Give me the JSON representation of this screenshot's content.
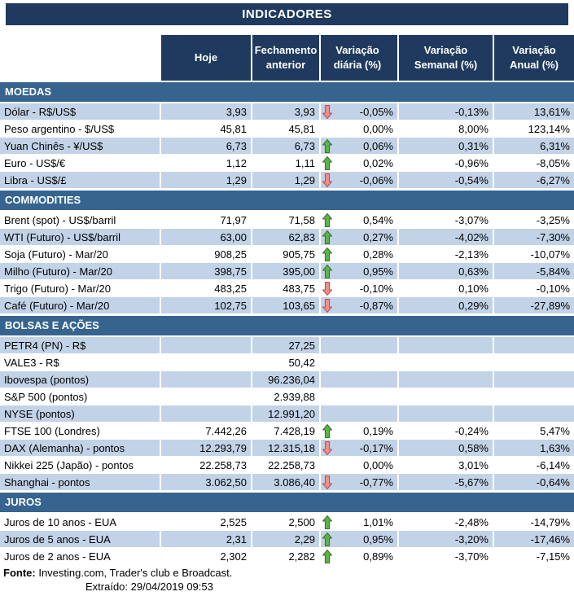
{
  "chart_data": {
    "type": "table",
    "title": "INDICADORES",
    "columns": [
      {
        "label": "Hoje"
      },
      {
        "label": "Fechamento anterior"
      },
      {
        "label": "Variação diária (%)"
      },
      {
        "label": "Variação Semanal (%)"
      },
      {
        "label": "Variação Anual (%)"
      }
    ],
    "sections": [
      {
        "name": "MOEDAS",
        "rows": [
          {
            "label": "Dólar - R$/US$",
            "hoje": "3,93",
            "fechamento": "3,93",
            "arrow": "down",
            "variacao_diaria": "-0,05%",
            "variacao_semanal": "-0,13%",
            "variacao_anual": "13,61%"
          },
          {
            "label": "Peso argentino - $/US$",
            "hoje": "45,81",
            "fechamento": "45,81",
            "arrow": "none",
            "variacao_diaria": "0,00%",
            "variacao_semanal": "8,00%",
            "variacao_anual": "123,14%"
          },
          {
            "label": "Yuan Chinês - ¥/US$",
            "hoje": "6,73",
            "fechamento": "6,73",
            "arrow": "up",
            "variacao_diaria": "0,06%",
            "variacao_semanal": "0,31%",
            "variacao_anual": "6,31%"
          },
          {
            "label": "Euro - US$/€",
            "hoje": "1,12",
            "fechamento": "1,11",
            "arrow": "up",
            "variacao_diaria": "0,02%",
            "variacao_semanal": "-0,96%",
            "variacao_anual": "-8,05%"
          },
          {
            "label": "Libra - US$/£",
            "hoje": "1,29",
            "fechamento": "1,29",
            "arrow": "down",
            "variacao_diaria": "-0,06%",
            "variacao_semanal": "-0,54%",
            "variacao_anual": "-6,27%"
          }
        ]
      },
      {
        "name": "COMMODITIES",
        "rows": [
          {
            "label": "Brent (spot) - US$/barril",
            "hoje": "71,97",
            "fechamento": "71,58",
            "arrow": "up",
            "variacao_diaria": "0,54%",
            "variacao_semanal": "-3,07%",
            "variacao_anual": "-3,25%"
          },
          {
            "label": "WTI (Futuro) - US$/barril",
            "hoje": "63,00",
            "fechamento": "62,83",
            "arrow": "up",
            "variacao_diaria": "0,27%",
            "variacao_semanal": "-4,02%",
            "variacao_anual": "-7,30%"
          },
          {
            "label": "Soja (Futuro) - Mar/20",
            "hoje": "908,25",
            "fechamento": "905,75",
            "arrow": "up",
            "variacao_diaria": "0,28%",
            "variacao_semanal": "-2,13%",
            "variacao_anual": "-10,07%"
          },
          {
            "label": "Milho (Futuro) - Mar/20",
            "hoje": "398,75",
            "fechamento": "395,00",
            "arrow": "up",
            "variacao_diaria": "0,95%",
            "variacao_semanal": "0,63%",
            "variacao_anual": "-5,84%"
          },
          {
            "label": "Trigo (Futuro) - Mar/20",
            "hoje": "483,25",
            "fechamento": "483,75",
            "arrow": "down",
            "variacao_diaria": "-0,10%",
            "variacao_semanal": "0,10%",
            "variacao_anual": "-0,10%"
          },
          {
            "label": "Café (Futuro) - Mar/20",
            "hoje": "102,75",
            "fechamento": "103,65",
            "arrow": "down",
            "variacao_diaria": "-0,87%",
            "variacao_semanal": "0,29%",
            "variacao_anual": "-27,89%"
          }
        ]
      },
      {
        "name": "BOLSAS E AÇÕES",
        "rows": [
          {
            "label": "PETR4 (PN) - R$",
            "hoje": "",
            "fechamento": "27,25",
            "arrow": "none",
            "variacao_diaria": "",
            "variacao_semanal": "",
            "variacao_anual": ""
          },
          {
            "label": "VALE3 - R$",
            "hoje": "",
            "fechamento": "50,42",
            "arrow": "none",
            "variacao_diaria": "",
            "variacao_semanal": "",
            "variacao_anual": ""
          },
          {
            "label": "Ibovespa (pontos)",
            "hoje": "",
            "fechamento": "96.236,04",
            "arrow": "none",
            "variacao_diaria": "",
            "variacao_semanal": "",
            "variacao_anual": ""
          },
          {
            "label": "S&P 500 (pontos)",
            "hoje": "",
            "fechamento": "2.939,88",
            "arrow": "none",
            "variacao_diaria": "",
            "variacao_semanal": "",
            "variacao_anual": ""
          },
          {
            "label": "NYSE (pontos)",
            "hoje": "",
            "fechamento": "12.991,20",
            "arrow": "none",
            "variacao_diaria": "",
            "variacao_semanal": "",
            "variacao_anual": ""
          },
          {
            "label": "FTSE 100 (Londres)",
            "hoje": "7.442,26",
            "fechamento": "7.428,19",
            "arrow": "up",
            "variacao_diaria": "0,19%",
            "variacao_semanal": "-0,24%",
            "variacao_anual": "5,47%"
          },
          {
            "label": "DAX (Alemanha) - pontos",
            "hoje": "12.293,79",
            "fechamento": "12.315,18",
            "arrow": "down",
            "variacao_diaria": "-0,17%",
            "variacao_semanal": "0,58%",
            "variacao_anual": "1,63%"
          },
          {
            "label": "Nikkei 225 (Japão) - pontos",
            "hoje": "22.258,73",
            "fechamento": "22.258,73",
            "arrow": "none",
            "variacao_diaria": "0,00%",
            "variacao_semanal": "3,01%",
            "variacao_anual": "-6,14%"
          },
          {
            "label": "Shanghai - pontos",
            "hoje": "3.062,50",
            "fechamento": "3.086,40",
            "arrow": "down",
            "variacao_diaria": "-0,77%",
            "variacao_semanal": "-5,67%",
            "variacao_anual": "-0,64%"
          }
        ]
      },
      {
        "name": "JUROS",
        "rows": [
          {
            "label": "Juros de 10 anos - EUA",
            "hoje": "2,525",
            "fechamento": "2,500",
            "arrow": "up",
            "variacao_diaria": "1,01%",
            "variacao_semanal": "-2,48%",
            "variacao_anual": "-14,79%"
          },
          {
            "label": "Juros de 5 anos - EUA",
            "hoje": "2,31",
            "fechamento": "2,29",
            "arrow": "up",
            "variacao_diaria": "0,95%",
            "variacao_semanal": "-3,20%",
            "variacao_anual": "-17,46%"
          },
          {
            "label": "Juros de 2 anos - EUA",
            "hoje": "2,302",
            "fechamento": "2,282",
            "arrow": "up",
            "variacao_diaria": "0,89%",
            "variacao_semanal": "-3,70%",
            "variacao_anual": "-7,15%"
          }
        ]
      }
    ],
    "footer": {
      "fonte_label": "Fonte:",
      "fonte_text": "Investing.com, Trader's club e Broadcast.",
      "extraido_label": "Extraído:",
      "extraido_value": "29/04/2019 09:53"
    },
    "colors": {
      "header_navy": "#1F3A5E",
      "section_blue": "#36648F",
      "row_shaded": "#C2D3E8",
      "arrow_up_fill": "#5CB348",
      "arrow_up_stroke": "#37702A",
      "arrow_down_fill": "#E8918D",
      "arrow_down_stroke": "#BE4B48"
    }
  }
}
